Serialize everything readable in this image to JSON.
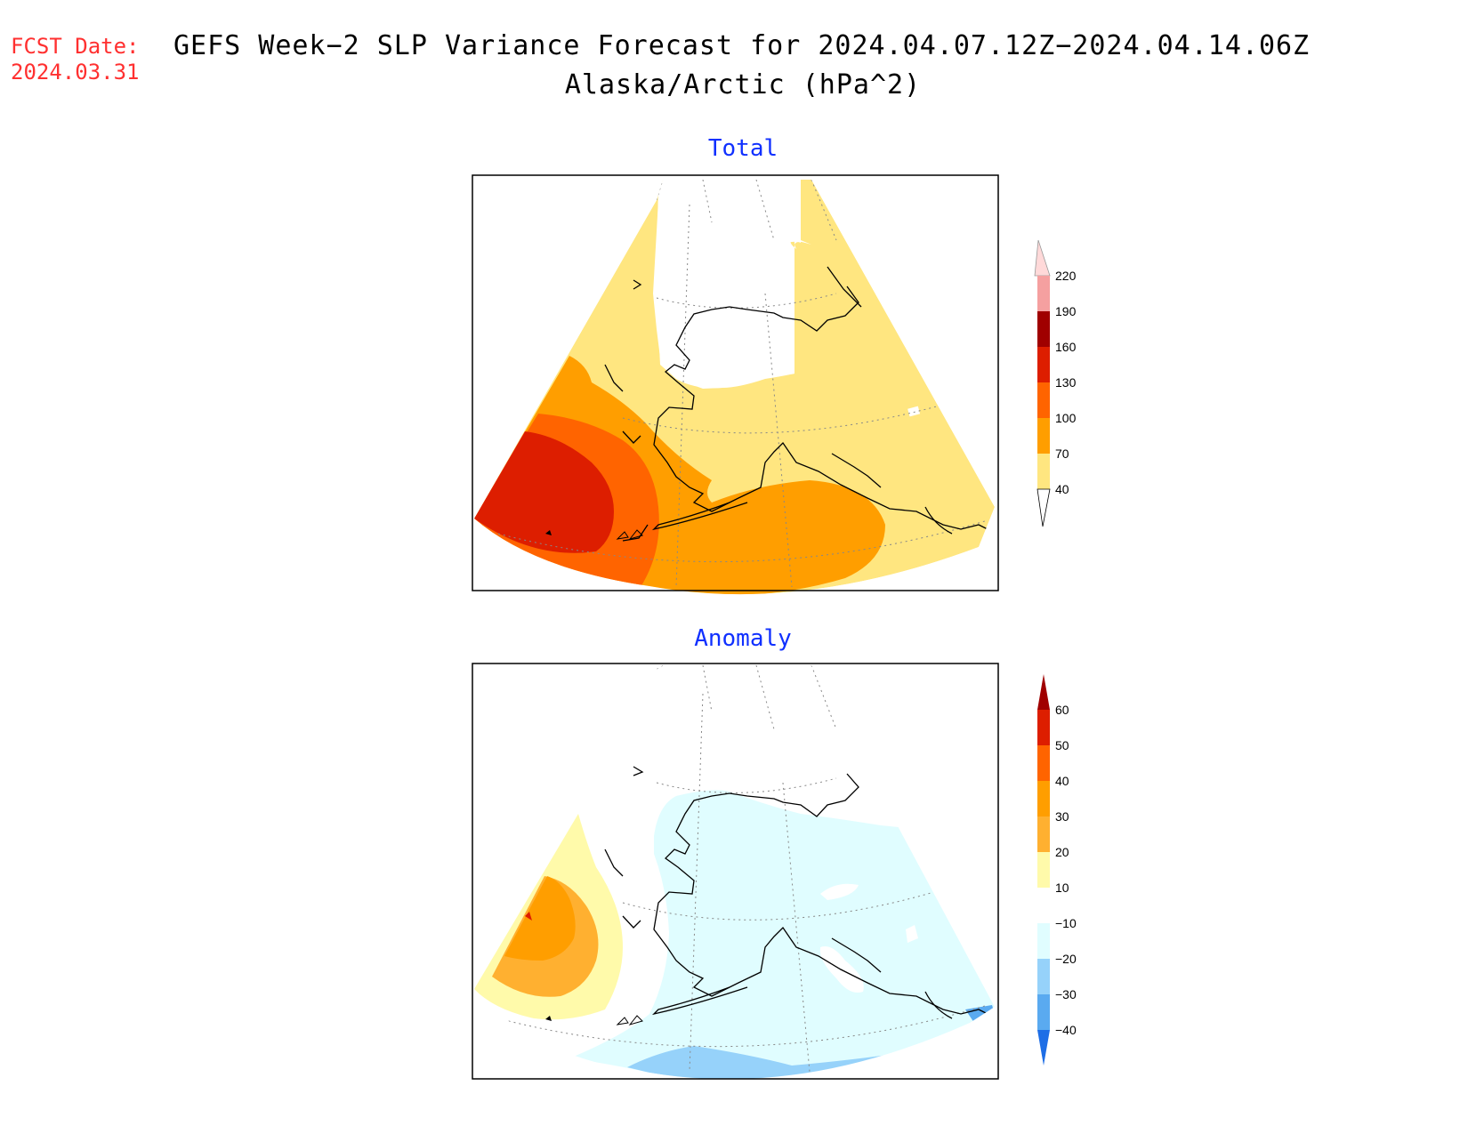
{
  "header": {
    "fcst_label": "FCST Date:",
    "fcst_date": "2024.03.31",
    "title_line1": "GEFS Week−2 SLP Variance Forecast for 2024.04.07.12Z−2024.04.14.06Z",
    "title_line2": "Alaska/Arctic (hPa^2)"
  },
  "panels": [
    {
      "title": "Total",
      "colorbar": {
        "labels": [
          "220",
          "190",
          "160",
          "130",
          "100",
          "70",
          "40"
        ],
        "colors": [
          "#ffd9d9",
          "#f5a0a0",
          "#a00000",
          "#dd1e00",
          "#ff6400",
          "#ff9e00",
          "#ffe680"
        ]
      }
    },
    {
      "title": "Anomaly",
      "colorbar": {
        "labels": [
          "60",
          "50",
          "40",
          "30",
          "20",
          "10",
          "−10",
          "−20",
          "−30",
          "−40"
        ],
        "colors": [
          "#a00000",
          "#dd1e00",
          "#ff6400",
          "#ff9e00",
          "#ffb030",
          "#fffaaa",
          "#ffffff",
          "#e0fdff",
          "#96d2fa",
          "#5aaaf0",
          "#1e6ee6"
        ]
      }
    }
  ]
}
